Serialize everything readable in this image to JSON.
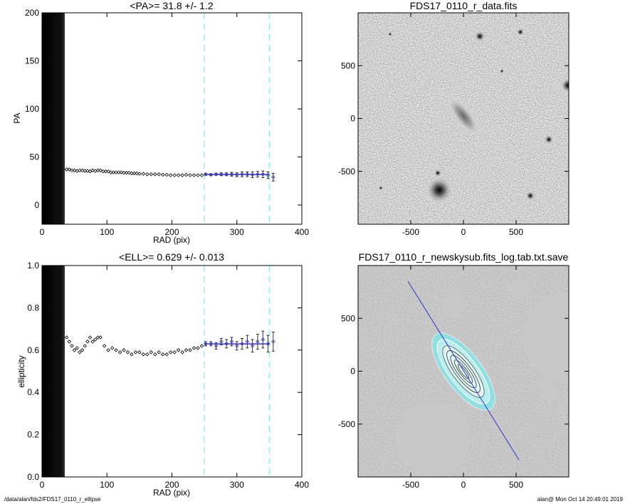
{
  "footer": {
    "left": "/data/alan/fds2/FDS17_0110_r_ellipse",
    "right": "alan@  Mon Oct 14 20:49:01 2019"
  },
  "colors": {
    "fit": "#3333cc",
    "window": "#99eeee",
    "points": "#000000",
    "mask": "#c8c8c8"
  },
  "chart_data": [
    {
      "type": "scatter",
      "title": "<PA>=  31.8 +/-   1.2",
      "xlabel": "RAD (pix)",
      "ylabel": "PA",
      "xlim": [
        0,
        400
      ],
      "ylim": [
        -20,
        200
      ],
      "xticks": [
        0,
        100,
        200,
        300,
        400
      ],
      "yticks": [
        0,
        50,
        100,
        150,
        200
      ],
      "window": [
        250,
        350
      ],
      "fit_value": 31.8,
      "fit_range": [
        250,
        350
      ],
      "series": [
        {
          "x": [
            38,
            42,
            46,
            50,
            54,
            58,
            62,
            66,
            70,
            74,
            78,
            82,
            86,
            90,
            94,
            98,
            102,
            106,
            110,
            114,
            118,
            122,
            126,
            130,
            134,
            138,
            142,
            146,
            150,
            156,
            162,
            168,
            174,
            180,
            186,
            192,
            198,
            204,
            210,
            216,
            222,
            228,
            234,
            240,
            246
          ],
          "y": [
            37,
            37,
            36,
            36,
            35.5,
            36,
            36,
            35.5,
            35.5,
            35,
            36,
            35.5,
            36,
            36,
            35,
            35,
            35,
            34,
            34,
            34,
            34,
            34,
            33.5,
            33.5,
            33.5,
            33,
            33,
            33,
            32.5,
            32.5,
            32,
            32,
            32,
            32,
            31.5,
            31.5,
            31,
            31,
            31,
            31,
            31.5,
            31,
            31,
            31,
            31
          ]
        },
        {
          "x": [
            252,
            260,
            268,
            276,
            284,
            292,
            300,
            308,
            316,
            324,
            332,
            340,
            348,
            356
          ],
          "y": [
            32,
            31.5,
            32,
            32,
            32,
            32,
            31.5,
            32,
            32,
            31.5,
            32,
            32,
            31,
            29
          ],
          "err": [
            1,
            1,
            1,
            1.5,
            1.5,
            2,
            2,
            2.5,
            2.5,
            3,
            3,
            3.5,
            3.5,
            4
          ]
        }
      ]
    },
    {
      "type": "scatter",
      "title": "<ELL>= 0.629 +/-  0.013",
      "xlabel": "RAD (pix)",
      "ylabel": "ellipticity",
      "xlim": [
        0,
        400
      ],
      "ylim": [
        0,
        1
      ],
      "xticks": [
        0,
        100,
        200,
        300,
        400
      ],
      "yticks": [
        0.0,
        0.2,
        0.4,
        0.6,
        0.8,
        1.0
      ],
      "window": [
        250,
        350
      ],
      "fit_value": 0.629,
      "fit_range": [
        250,
        350
      ],
      "series": [
        {
          "x": [
            38,
            42,
            46,
            50,
            54,
            58,
            62,
            66,
            70,
            74,
            78,
            82,
            86,
            90,
            96,
            102,
            108,
            114,
            120,
            126,
            132,
            138,
            144,
            150,
            156,
            162,
            168,
            174,
            180,
            186,
            192,
            198,
            204,
            210,
            216,
            222,
            228,
            234,
            240,
            246
          ],
          "y": [
            0.66,
            0.64,
            0.62,
            0.6,
            0.61,
            0.59,
            0.6,
            0.62,
            0.64,
            0.66,
            0.64,
            0.65,
            0.66,
            0.66,
            0.62,
            0.6,
            0.61,
            0.6,
            0.59,
            0.6,
            0.59,
            0.58,
            0.59,
            0.59,
            0.58,
            0.58,
            0.59,
            0.58,
            0.59,
            0.58,
            0.58,
            0.59,
            0.59,
            0.6,
            0.59,
            0.6,
            0.6,
            0.61,
            0.61,
            0.62
          ]
        },
        {
          "x": [
            252,
            260,
            268,
            276,
            284,
            292,
            300,
            308,
            316,
            324,
            332,
            340,
            348,
            356
          ],
          "y": [
            0.63,
            0.63,
            0.62,
            0.64,
            0.63,
            0.64,
            0.62,
            0.63,
            0.64,
            0.62,
            0.64,
            0.65,
            0.63,
            0.64
          ],
          "err": [
            0.01,
            0.01,
            0.015,
            0.015,
            0.02,
            0.02,
            0.02,
            0.025,
            0.03,
            0.03,
            0.035,
            0.04,
            0.04,
            0.045
          ]
        }
      ]
    },
    {
      "type": "image",
      "title": "FDS17_0110_r_data.fits",
      "xlim": [
        -1000,
        1000
      ],
      "ylim": [
        -1000,
        1000
      ],
      "xticks": [
        -500,
        0,
        500
      ],
      "yticks": [
        -500,
        0,
        500
      ],
      "image": "greyscale galaxy field"
    },
    {
      "type": "image",
      "title": "FDS17_0110_r_newskysub.fits_log.tab.txt.save",
      "xlim": [
        -1000,
        1000
      ],
      "ylim": [
        -1000,
        1000
      ],
      "xticks": [
        -500,
        0,
        500
      ],
      "yticks": [
        -500,
        0,
        500
      ],
      "image": "masked sky-subtracted galaxy with fitted ellipses"
    }
  ]
}
